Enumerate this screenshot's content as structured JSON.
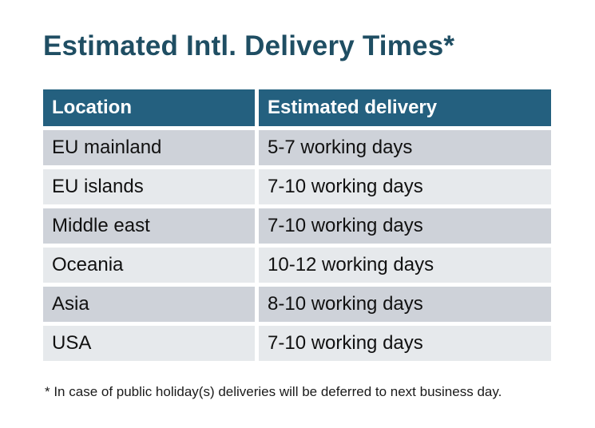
{
  "title": "Estimated Intl. Delivery Times*",
  "table": {
    "columns": {
      "location": "Location",
      "delivery": "Estimated delivery"
    },
    "rows": [
      {
        "location": "EU mainland",
        "delivery": "5-7 working days"
      },
      {
        "location": "EU islands",
        "delivery": "7-10 working days"
      },
      {
        "location": "Middle east",
        "delivery": "7-10 working days"
      },
      {
        "location": "Oceania",
        "delivery": "10-12 working days"
      },
      {
        "location": "Asia",
        "delivery": "8-10 working days"
      },
      {
        "location": "USA",
        "delivery": "7-10 working days"
      }
    ]
  },
  "footnote": "* In case of public holiday(s) deliveries will be deferred to next business day.",
  "colors": {
    "header_bg": "#24607F",
    "row_odd": "#CED2D9",
    "row_even": "#E6E9EC",
    "title_color": "#1F4E63",
    "cell_text": "#111111",
    "header_text": "#FFFFFF",
    "footnote_color": "#1A1A1A"
  }
}
